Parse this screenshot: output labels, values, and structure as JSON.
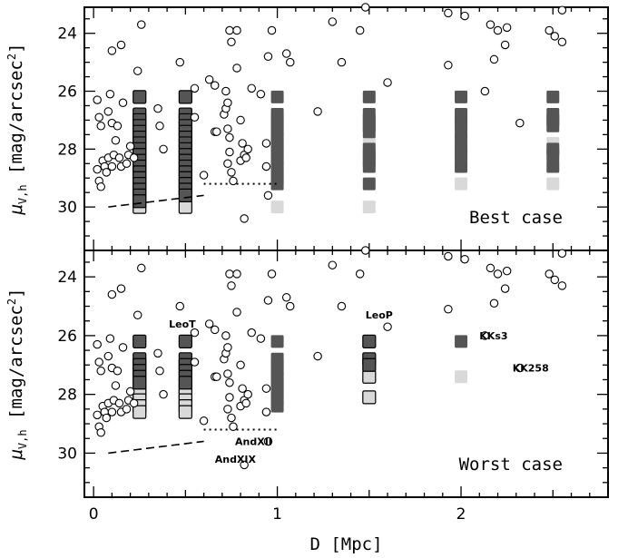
{
  "chart_data": {
    "type": "scatter",
    "xlabel": "D [Mpc]",
    "ylabel": "μV,h [mag/arcsec²]",
    "ylabel_parts": {
      "mu": "μ",
      "sub": "V,h",
      "rest": " [mag/arcsec",
      "sup": "2",
      "close": "]"
    },
    "xlim": [
      -0.05,
      2.8
    ],
    "ylim_inverted": [
      23.1,
      31.5
    ],
    "x_ticks": [
      0,
      1,
      2
    ],
    "x_tick_labels": [
      "0",
      "1",
      "2"
    ],
    "y_ticks": [
      24,
      26,
      28,
      30
    ],
    "y_tick_labels": [
      "24",
      "26",
      "28",
      "30"
    ],
    "grid": false,
    "panels": [
      {
        "label": "Best case",
        "grid_columns": [
          {
            "D": 0.25,
            "dark": [
              26.2,
              26.8,
              27.0,
              27.2,
              27.4,
              27.6,
              27.8,
              28.0,
              28.2,
              28.4,
              28.6,
              28.8,
              29.0,
              29.2,
              29.4,
              29.6,
              29.8
            ],
            "light": [
              30.0
            ],
            "outlined": true
          },
          {
            "D": 0.5,
            "dark": [
              26.2,
              26.8,
              27.0,
              27.2,
              27.4,
              27.6,
              27.8,
              28.0,
              28.2,
              28.4,
              28.6,
              28.8,
              29.0,
              29.2,
              29.4,
              29.6
            ],
            "light": [
              30.0
            ],
            "outlined": true
          },
          {
            "D": 1.0,
            "dark": [
              26.2,
              26.8,
              27.0,
              27.2,
              27.4,
              27.6,
              27.8,
              28.0,
              28.2,
              28.4,
              28.6,
              28.8,
              29.0,
              29.2
            ],
            "light": [
              30.0
            ],
            "outlined": false
          },
          {
            "D": 1.5,
            "dark": [
              26.2,
              26.8,
              27.0,
              27.2,
              27.4,
              28.0,
              28.2,
              28.4,
              28.6,
              29.2
            ],
            "light": [
              27.8,
              30.0
            ],
            "outlined": false
          },
          {
            "D": 2.0,
            "dark": [
              26.2,
              26.8,
              27.0,
              27.2,
              27.6,
              28.0,
              28.2,
              28.6
            ],
            "light": [
              29.2
            ],
            "outlined": false
          },
          {
            "D": 2.5,
            "dark": [
              26.2,
              26.8,
              27.0,
              27.2,
              28.0,
              28.2,
              28.6
            ],
            "light": [
              27.8,
              29.2
            ],
            "outlined": false
          }
        ],
        "dashed_line": [
          [
            0.08,
            30.0
          ],
          [
            0.6,
            29.6
          ]
        ],
        "dotted_line": [
          [
            0.6,
            29.2
          ],
          [
            1.0,
            29.2
          ]
        ],
        "annotations": []
      },
      {
        "label": "Worst case",
        "grid_columns": [
          {
            "D": 0.25,
            "dark": [
              26.2,
              26.8,
              27.0,
              27.2,
              27.4,
              27.6
            ],
            "light": [
              27.8,
              28.0,
              28.2,
              28.4,
              28.6
            ],
            "outlined": true
          },
          {
            "D": 0.5,
            "dark": [
              26.2,
              26.8,
              27.0,
              27.2,
              27.4,
              27.6
            ],
            "light": [
              27.8,
              28.0,
              28.2,
              28.4,
              28.6
            ],
            "outlined": true
          },
          {
            "D": 1.0,
            "dark": [
              26.2,
              26.8,
              27.0,
              27.2,
              27.4,
              27.6,
              27.8,
              28.0,
              28.2,
              28.4
            ],
            "light": [],
            "outlined": false
          },
          {
            "D": 1.5,
            "dark": [
              26.2,
              26.8,
              27.0
            ],
            "light": [
              27.4,
              28.1
            ],
            "outlined": true
          },
          {
            "D": 2.0,
            "dark": [
              26.2
            ],
            "light": [
              27.4
            ],
            "outlined": false
          }
        ],
        "dashed_line": [
          [
            0.08,
            30.0
          ],
          [
            0.6,
            29.6
          ]
        ],
        "dotted_line": [
          [
            0.6,
            29.2
          ],
          [
            1.0,
            29.2
          ]
        ],
        "annotations": [
          {
            "text": "LeoT",
            "x": 0.41,
            "y": 25.6
          },
          {
            "text": "LeoP",
            "x": 1.48,
            "y": 25.3
          },
          {
            "text": "KKs3",
            "x": 2.1,
            "y": 26.0
          },
          {
            "text": "KK258",
            "x": 2.28,
            "y": 27.1
          },
          {
            "text": "AndXII",
            "x": 0.77,
            "y": 29.6
          },
          {
            "text": "AndXIX",
            "x": 0.66,
            "y": 30.2
          }
        ]
      }
    ],
    "galaxies": [
      [
        0.02,
        26.3
      ],
      [
        0.03,
        26.9
      ],
      [
        0.04,
        27.2
      ],
      [
        0.05,
        28.4
      ],
      [
        0.02,
        28.7
      ],
      [
        0.03,
        29.1
      ],
      [
        0.04,
        29.3
      ],
      [
        0.06,
        28.6
      ],
      [
        0.08,
        28.3
      ],
      [
        0.07,
        28.8
      ],
      [
        0.1,
        28.6
      ],
      [
        0.1,
        27.1
      ],
      [
        0.08,
        26.7
      ],
      [
        0.09,
        26.1
      ],
      [
        0.12,
        27.7
      ],
      [
        0.11,
        28.2
      ],
      [
        0.14,
        28.3
      ],
      [
        0.15,
        28.6
      ],
      [
        0.13,
        27.2
      ],
      [
        0.1,
        24.6
      ],
      [
        0.15,
        24.4
      ],
      [
        0.18,
        28.5
      ],
      [
        0.19,
        28.2
      ],
      [
        0.2,
        27.9
      ],
      [
        0.16,
        26.4
      ],
      [
        0.22,
        28.3
      ],
      [
        0.24,
        25.3
      ],
      [
        0.26,
        23.7
      ],
      [
        0.35,
        26.6
      ],
      [
        0.36,
        27.2
      ],
      [
        0.38,
        28.0
      ],
      [
        0.47,
        25.0
      ],
      [
        0.55,
        25.9
      ],
      [
        0.55,
        26.9
      ],
      [
        0.6,
        28.9
      ],
      [
        0.63,
        25.6
      ],
      [
        0.66,
        25.8
      ],
      [
        0.66,
        27.4
      ],
      [
        0.67,
        27.4
      ],
      [
        0.71,
        26.8
      ],
      [
        0.72,
        26.0
      ],
      [
        0.72,
        26.6
      ],
      [
        0.73,
        26.4
      ],
      [
        0.73,
        27.3
      ],
      [
        0.74,
        27.6
      ],
      [
        0.74,
        28.1
      ],
      [
        0.73,
        28.5
      ],
      [
        0.75,
        28.8
      ],
      [
        0.76,
        29.1
      ],
      [
        0.74,
        23.9
      ],
      [
        0.75,
        24.3
      ],
      [
        0.78,
        23.9
      ],
      [
        0.78,
        25.2
      ],
      [
        0.8,
        27.0
      ],
      [
        0.8,
        28.4
      ],
      [
        0.81,
        27.8
      ],
      [
        0.82,
        28.2
      ],
      [
        0.83,
        28.3
      ],
      [
        0.84,
        28.0
      ],
      [
        0.86,
        25.9
      ],
      [
        0.82,
        30.4
      ],
      [
        0.91,
        26.1
      ],
      [
        0.95,
        24.8
      ],
      [
        0.94,
        28.6
      ],
      [
        0.97,
        23.9
      ],
      [
        0.95,
        29.6
      ],
      [
        0.94,
        27.8
      ],
      [
        1.05,
        24.7
      ],
      [
        1.07,
        25.0
      ],
      [
        1.22,
        26.7
      ],
      [
        1.3,
        23.6
      ],
      [
        1.35,
        25.0
      ],
      [
        1.45,
        23.9
      ],
      [
        1.48,
        23.1
      ],
      [
        1.6,
        25.7
      ],
      [
        1.93,
        25.1
      ],
      [
        1.93,
        23.3
      ],
      [
        2.02,
        23.4
      ],
      [
        2.13,
        26.0
      ],
      [
        2.16,
        23.7
      ],
      [
        2.18,
        24.9
      ],
      [
        2.2,
        23.9
      ],
      [
        2.24,
        24.4
      ],
      [
        2.25,
        23.8
      ],
      [
        2.32,
        27.1
      ],
      [
        2.48,
        23.9
      ],
      [
        2.51,
        24.1
      ],
      [
        2.55,
        24.3
      ],
      [
        2.55,
        23.2
      ]
    ]
  }
}
